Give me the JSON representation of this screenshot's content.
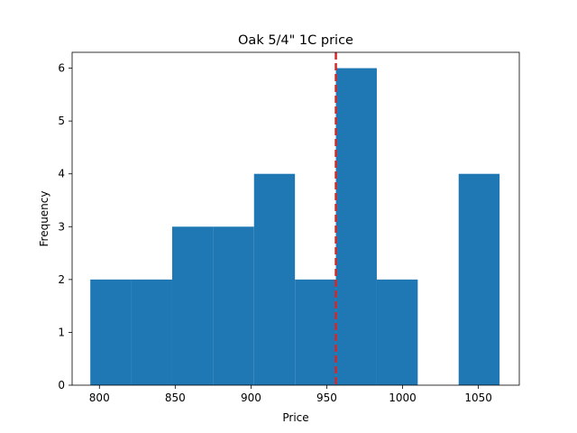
{
  "chart_data": {
    "type": "bar",
    "title": "Oak 5/4\" 1C price",
    "xlabel": "Price",
    "ylabel": "Frequency",
    "xlim": [
      782,
      1077
    ],
    "ylim": [
      0,
      6.3
    ],
    "x_ticks": [
      800,
      850,
      900,
      950,
      1000,
      1050
    ],
    "y_ticks": [
      0,
      1,
      2,
      3,
      4,
      5,
      6
    ],
    "bins": [
      {
        "start": 794,
        "end": 821,
        "count": 2
      },
      {
        "start": 821,
        "end": 848,
        "count": 2
      },
      {
        "start": 848,
        "end": 875,
        "count": 3
      },
      {
        "start": 875,
        "end": 902,
        "count": 3
      },
      {
        "start": 902,
        "end": 929,
        "count": 4
      },
      {
        "start": 929,
        "end": 956,
        "count": 2
      },
      {
        "start": 956,
        "end": 983,
        "count": 6
      },
      {
        "start": 983,
        "end": 1010,
        "count": 2
      },
      {
        "start": 1010,
        "end": 1037,
        "count": 0
      },
      {
        "start": 1037,
        "end": 1064,
        "count": 4
      }
    ],
    "reference_line": {
      "x": 956,
      "color": "#d62728",
      "style": "dashed"
    },
    "bar_color": "#1f77b4",
    "grid": false,
    "legend": "none"
  }
}
